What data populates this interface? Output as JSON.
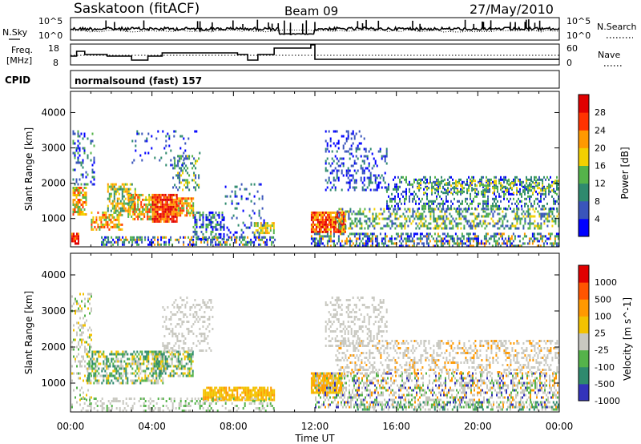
{
  "header": {
    "title": "Saskatoon (fitACF)",
    "beam": "Beam 09",
    "date": "27/May/2010"
  },
  "noise_panel": {
    "left_label": "N.Sky",
    "right_label": "N.Search",
    "left_ticks": [
      "10^5",
      "10^0"
    ],
    "right_ticks": [
      "10^5",
      "10^0"
    ]
  },
  "freq_panel": {
    "left_label_top": "Freq.",
    "left_label_bottom": "[MHz]",
    "right_label": "Nave",
    "left_ticks": [
      "18",
      "8"
    ],
    "right_ticks": [
      "60",
      "0"
    ]
  },
  "cpid": {
    "label": "CPID",
    "text": "normalsound (fast) 157"
  },
  "chart_data": [
    {
      "type": "heatmap",
      "name": "power",
      "ylabel": "Slant Range [km]",
      "ylim": [
        200,
        4600
      ],
      "y_ticks": [
        "4000",
        "3000",
        "2000",
        "1000"
      ],
      "colorbar_label": "Power [dB]",
      "colorbar_ticks": [
        "28",
        "24",
        "20",
        "16",
        "12",
        "8",
        "4"
      ],
      "colorbar_colors": [
        "#0000ff",
        "#3a55bb",
        "#2f8a6e",
        "#55b34a",
        "#f3d000",
        "#ff9900",
        "#ff3300",
        "#e00000"
      ]
    },
    {
      "type": "heatmap",
      "name": "velocity",
      "ylabel": "Slant Range [km]",
      "ylim": [
        200,
        4600
      ],
      "y_ticks": [
        "4000",
        "3000",
        "2000",
        "1000"
      ],
      "colorbar_label": "Velocity [m s^-1]",
      "colorbar_ticks": [
        "1000",
        "500",
        "100",
        "25",
        "-25",
        "-100",
        "-500",
        "-1000"
      ],
      "colorbar_colors": [
        "#3333bb",
        "#2f8a6e",
        "#55b34a",
        "#c8c8c0",
        "#f3c200",
        "#ff9900",
        "#ff5500",
        "#e00000"
      ]
    }
  ],
  "x_axis": {
    "label": "Time UT",
    "ticks": [
      "00:00",
      "04:00",
      "08:00",
      "12:00",
      "16:00",
      "20:00",
      "00:00"
    ]
  }
}
